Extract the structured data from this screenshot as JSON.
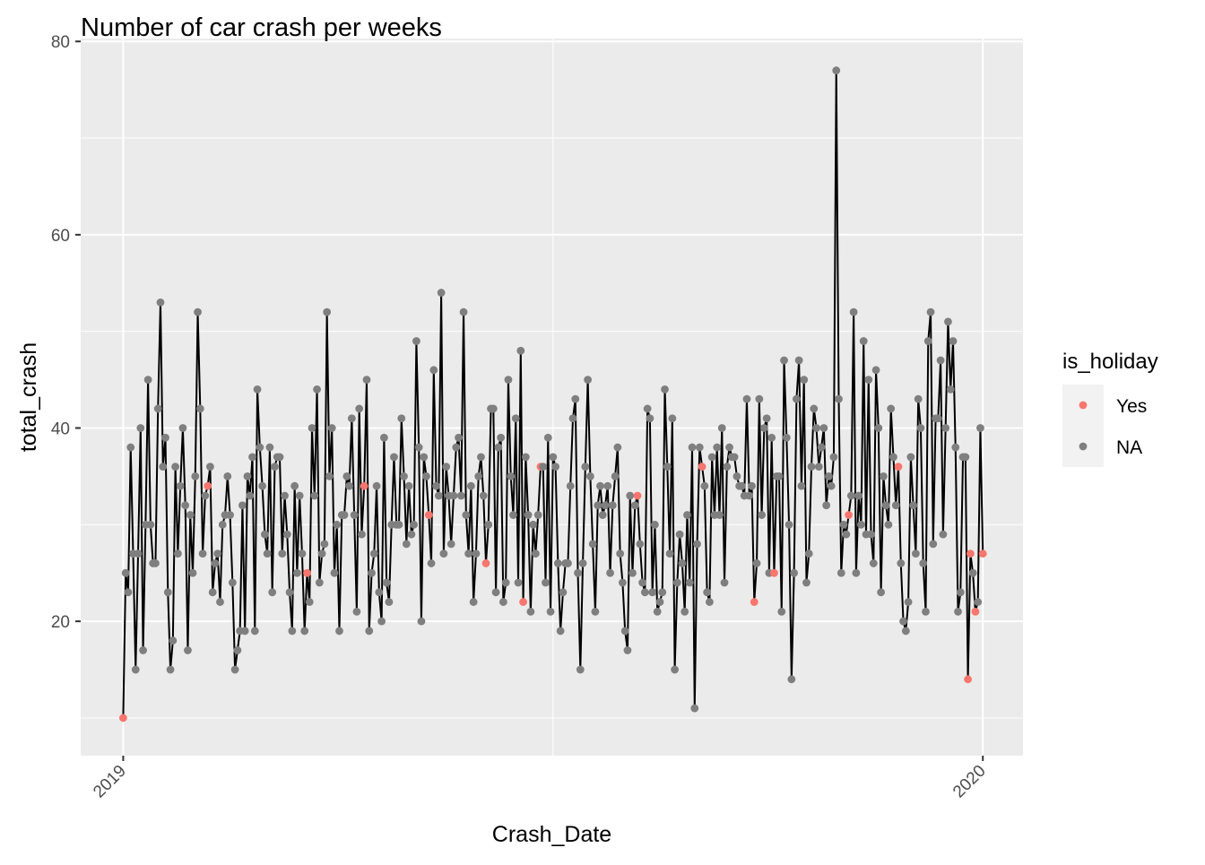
{
  "chart_data": {
    "type": "line",
    "title": "Number of car crash per weeks",
    "xlabel": "Crash_Date",
    "ylabel": "total_crash",
    "x_ticks": [
      {
        "label": "2019",
        "value": 0
      },
      {
        "label": "2020",
        "value": 364
      }
    ],
    "y_ticks": [
      20,
      40,
      60,
      80
    ],
    "xlim": [
      -18,
      381
    ],
    "ylim": [
      6.1,
      80.3
    ],
    "grid": true,
    "legend": {
      "title": "is_holiday",
      "position": "right",
      "entries": [
        {
          "label": "Yes",
          "color": "#F8766D"
        },
        {
          "label": "NA",
          "color": "#7F7F7F"
        }
      ]
    },
    "colors": {
      "line": "#000000",
      "holiday": "#F8766D",
      "normal": "#7F7F7F",
      "panel": "#EBEBEB",
      "grid": "#FFFFFF"
    },
    "series": [
      {
        "x_unit": "days since 2019-01-01",
        "values": [
          10,
          25,
          23,
          38,
          27,
          15,
          27,
          40,
          17,
          30,
          45,
          30,
          26,
          26,
          42,
          53,
          36,
          39,
          23,
          15,
          18,
          36,
          27,
          34,
          40,
          32,
          17,
          31,
          25,
          35,
          52,
          42,
          27,
          33,
          34,
          36,
          23,
          26,
          27,
          22,
          30,
          31,
          35,
          31,
          24,
          15,
          17,
          19,
          32,
          19,
          35,
          33,
          37,
          19,
          44,
          38,
          34,
          29,
          27,
          38,
          23,
          36,
          37,
          37,
          27,
          33,
          29,
          23,
          19,
          34,
          25,
          33,
          27,
          19,
          25,
          22,
          40,
          33,
          44,
          24,
          27,
          28,
          52,
          35,
          40,
          25,
          30,
          19,
          31,
          31,
          35,
          34,
          41,
          31,
          21,
          42,
          29,
          34,
          45,
          19,
          25,
          27,
          34,
          23,
          20,
          39,
          24,
          22,
          30,
          37,
          30,
          30,
          41,
          35,
          28,
          34,
          29,
          30,
          49,
          38,
          20,
          37,
          35,
          31,
          26,
          46,
          34,
          33,
          54,
          27,
          36,
          33,
          28,
          33,
          38,
          39,
          33,
          52,
          31,
          27,
          34,
          22,
          27,
          35,
          37,
          33,
          26,
          30,
          42,
          42,
          23,
          38,
          39,
          22,
          24,
          45,
          35,
          31,
          41,
          24,
          48,
          22,
          37,
          31,
          21,
          30,
          27,
          31,
          36,
          36,
          24,
          39,
          21,
          37,
          36,
          26,
          19,
          23,
          26,
          26,
          34,
          41,
          43,
          25,
          15,
          26,
          36,
          45,
          35,
          28,
          21,
          32,
          34,
          31,
          32,
          34,
          25,
          32,
          35,
          38,
          27,
          24,
          19,
          17,
          33,
          25,
          32,
          33,
          28,
          24,
          23,
          42,
          41,
          23,
          30,
          21,
          22,
          23,
          44,
          36,
          27,
          41,
          15,
          24,
          29,
          26,
          21,
          31,
          24,
          38,
          11,
          28,
          38,
          36,
          34,
          23,
          22,
          37,
          31,
          38,
          31,
          40,
          24,
          36,
          38,
          37,
          37,
          35,
          34,
          34,
          33,
          43,
          33,
          34,
          22,
          26,
          43,
          31,
          40,
          41,
          25,
          39,
          25,
          35,
          35,
          21,
          47,
          39,
          30,
          14,
          25,
          43,
          47,
          34,
          45,
          24,
          27,
          36,
          42,
          40,
          36,
          38,
          40,
          32,
          35,
          34,
          37,
          77,
          43,
          25,
          30,
          29,
          31,
          33,
          52,
          25,
          33,
          30,
          49,
          29,
          45,
          29,
          26,
          46,
          40,
          23,
          35,
          32,
          30,
          42,
          37,
          32,
          36,
          26,
          20,
          19,
          22,
          37,
          32,
          27,
          43,
          40,
          26,
          21,
          49,
          52,
          28,
          41,
          41,
          47,
          29,
          40,
          51,
          44,
          49,
          38,
          21,
          23,
          37,
          37,
          14,
          27,
          25,
          21,
          22,
          40,
          27
        ],
        "holiday_indices": [
          0,
          34,
          74,
          97,
          123,
          146,
          161,
          168,
          207,
          233,
          254,
          262,
          292,
          312,
          340,
          341,
          343,
          346,
          351,
          356
        ]
      }
    ]
  }
}
